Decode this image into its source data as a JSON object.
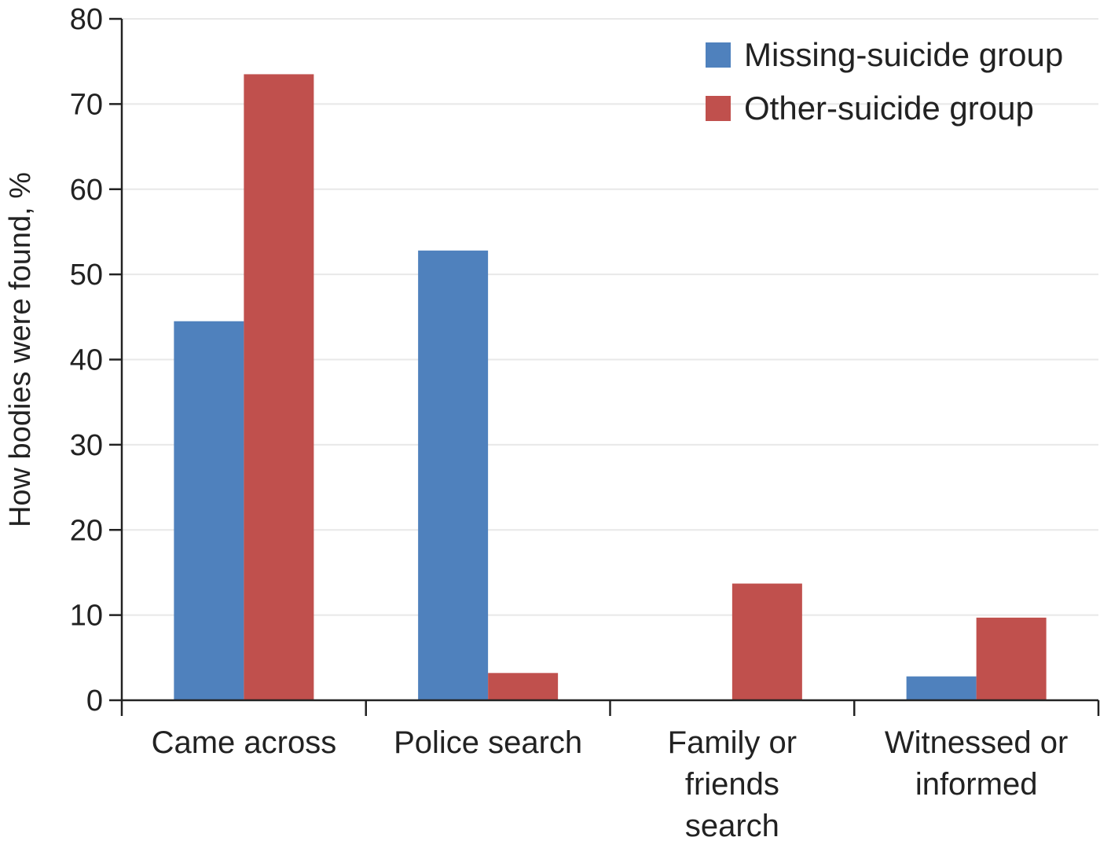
{
  "chart_data": {
    "type": "bar",
    "title": "",
    "xlabel": "",
    "ylabel": "How bodies were found, %",
    "ylim": [
      0,
      80
    ],
    "yticks": [
      0,
      10,
      20,
      30,
      40,
      50,
      60,
      70,
      80
    ],
    "grid": true,
    "legend_position": "top-right",
    "categories": [
      [
        "Came across"
      ],
      [
        "Police search"
      ],
      [
        "Family or",
        "friends",
        "search"
      ],
      [
        "Witnessed or",
        "informed"
      ]
    ],
    "series": [
      {
        "name": "Missing-suicide group",
        "color": "#4f81bd",
        "values": [
          44.5,
          52.8,
          0,
          2.8
        ]
      },
      {
        "name": "Other-suicide group",
        "color": "#c0504d",
        "values": [
          73.5,
          3.2,
          13.7,
          9.7
        ]
      }
    ]
  }
}
